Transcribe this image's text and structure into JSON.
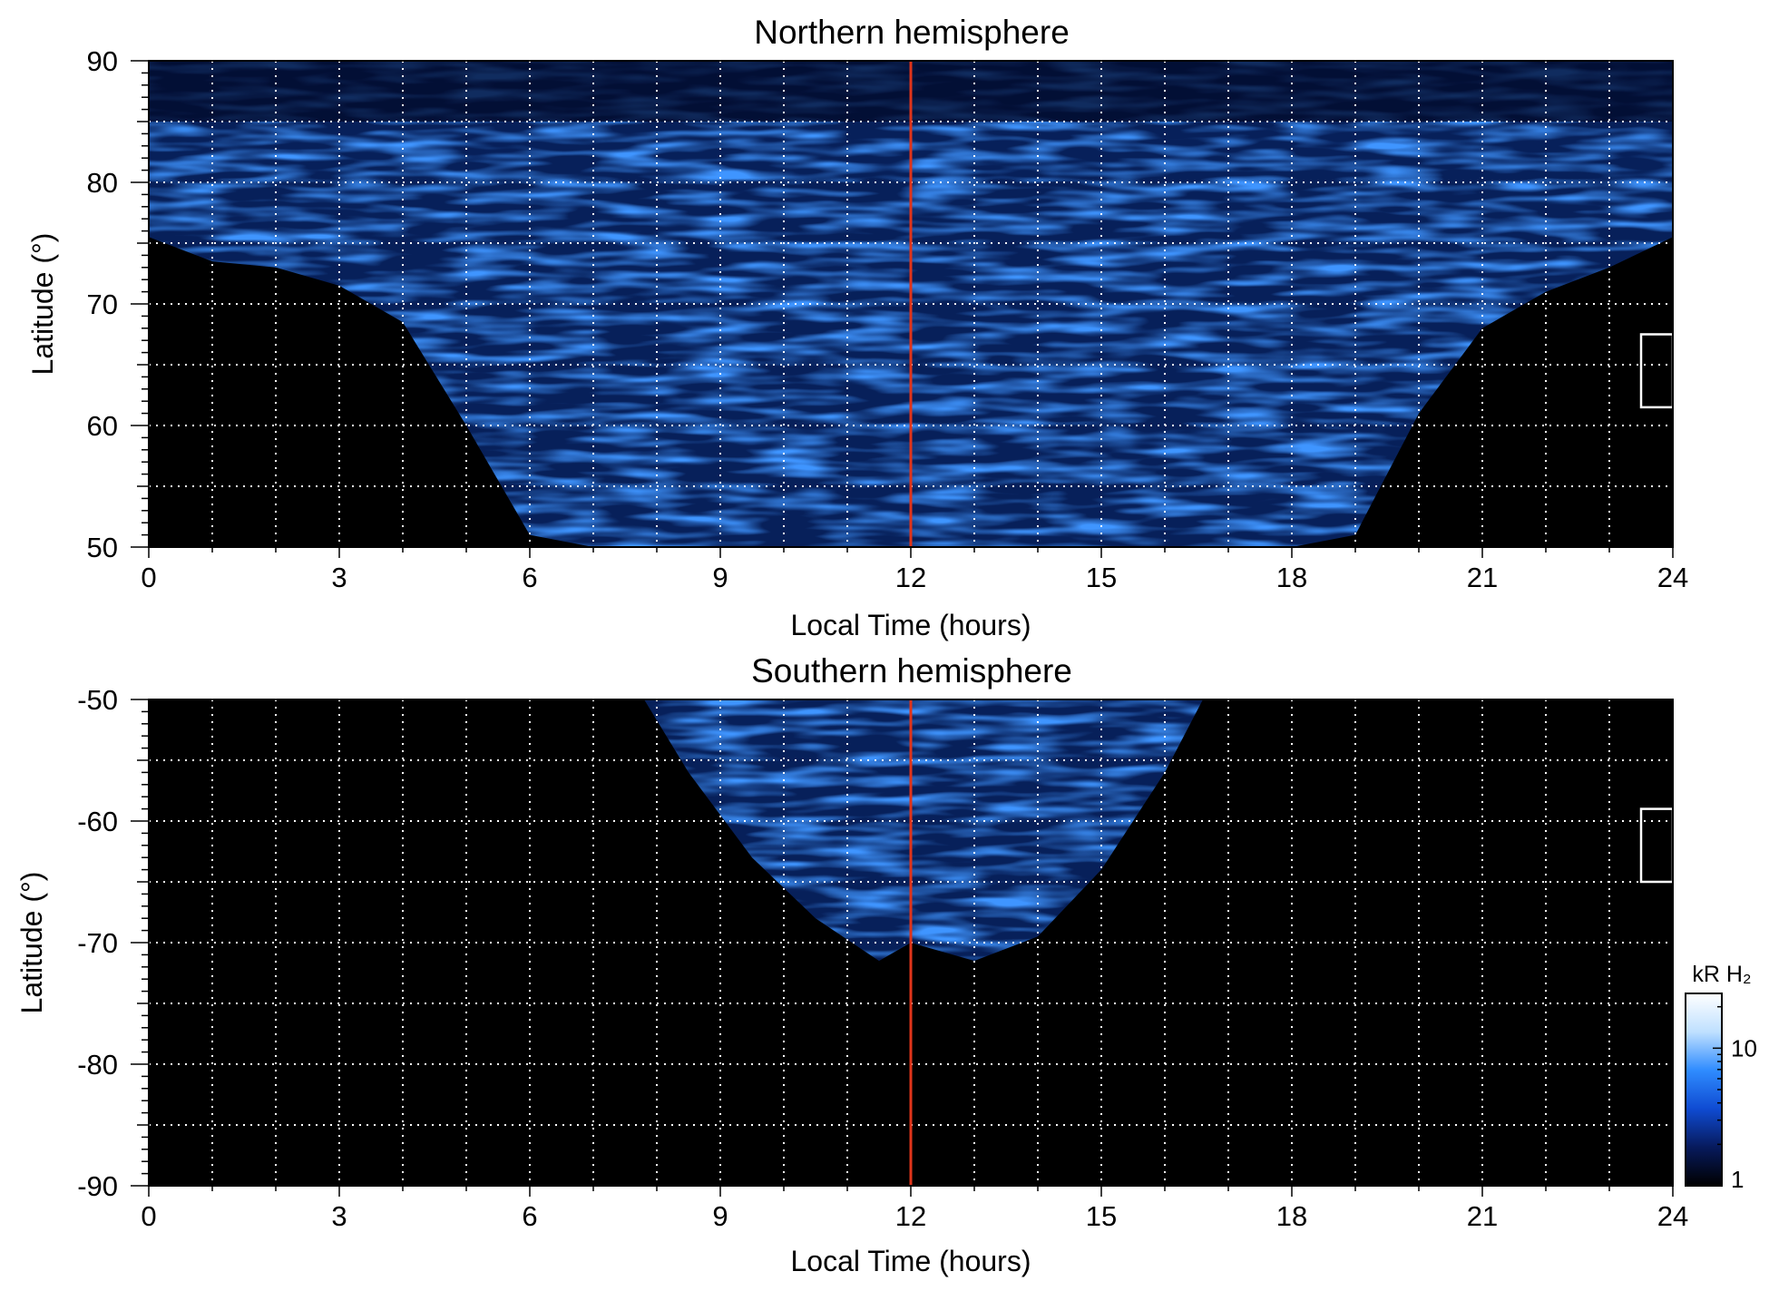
{
  "chart_data": [
    {
      "type": "heatmap",
      "title": "Northern hemisphere",
      "xlabel": "Local Time (hours)",
      "ylabel": "Latitude (°)",
      "xlim": [
        0,
        24
      ],
      "ylim": [
        50,
        90
      ],
      "xticks": [
        0,
        3,
        6,
        9,
        12,
        15,
        18,
        21,
        24
      ],
      "yticks": [
        50,
        60,
        70,
        80,
        90
      ],
      "xtick_labels": [
        "0",
        "3",
        "6",
        "9",
        "12",
        "15",
        "18",
        "21",
        "24"
      ],
      "ytick_labels": [
        "50",
        "60",
        "70",
        "80",
        "90"
      ],
      "x_gridlines": [
        1,
        2,
        3,
        4,
        5,
        6,
        7,
        8,
        9,
        10,
        11,
        12,
        13,
        14,
        15,
        16,
        17,
        18,
        19,
        20,
        21,
        22,
        23
      ],
      "y_gridlines": [
        55,
        60,
        65,
        70,
        75,
        80,
        85
      ],
      "grid": true,
      "reference_line": {
        "x": 12,
        "color": "#e0341a"
      },
      "coverage_edge": [
        [
          0,
          75.5
        ],
        [
          1,
          73.5
        ],
        [
          2,
          73
        ],
        [
          3,
          71.5
        ],
        [
          4,
          68.5
        ],
        [
          5,
          60
        ],
        [
          6,
          51
        ],
        [
          7,
          50
        ],
        [
          17,
          50
        ],
        [
          18,
          50
        ],
        [
          19,
          51
        ],
        [
          20,
          61
        ],
        [
          21,
          68
        ],
        [
          22,
          71
        ],
        [
          23,
          73
        ],
        [
          24,
          75.5
        ]
      ],
      "dark_band": [
        85,
        90
      ],
      "box": {
        "x": [
          23.5,
          24
        ],
        "y": [
          61.5,
          67.5
        ]
      }
    },
    {
      "type": "heatmap",
      "title": "Southern hemisphere",
      "xlabel": "Local Time (hours)",
      "ylabel": "Latitude (°)",
      "xlim": [
        0,
        24
      ],
      "ylim": [
        -90,
        -50
      ],
      "xticks": [
        0,
        3,
        6,
        9,
        12,
        15,
        18,
        21,
        24
      ],
      "yticks": [
        -90,
        -80,
        -70,
        -60,
        -50
      ],
      "xtick_labels": [
        "0",
        "3",
        "6",
        "9",
        "12",
        "15",
        "18",
        "21",
        "24"
      ],
      "ytick_labels": [
        "-90",
        "-80",
        "-70",
        "-60",
        "-50"
      ],
      "x_gridlines": [
        1,
        2,
        3,
        4,
        5,
        6,
        7,
        8,
        9,
        10,
        11,
        12,
        13,
        14,
        15,
        16,
        17,
        18,
        19,
        20,
        21,
        22,
        23
      ],
      "y_gridlines": [
        -85,
        -80,
        -75,
        -70,
        -65,
        -60,
        -55
      ],
      "grid": true,
      "reference_line": {
        "x": 12,
        "color": "#e0341a"
      },
      "coverage_edge": [
        [
          7.8,
          -50
        ],
        [
          8.5,
          -56
        ],
        [
          9.5,
          -63
        ],
        [
          10.5,
          -68
        ],
        [
          11.5,
          -71.5
        ],
        [
          12,
          -70
        ],
        [
          13,
          -71.5
        ],
        [
          14,
          -69.5
        ],
        [
          15,
          -64
        ],
        [
          16,
          -56
        ],
        [
          16.6,
          -50
        ]
      ],
      "box": {
        "x": [
          23.5,
          24
        ],
        "y": [
          -65,
          -59
        ]
      }
    }
  ],
  "colorbar": {
    "label": "kR H₂",
    "scale": "log",
    "range": [
      1,
      25
    ],
    "ticks": [
      1,
      10
    ],
    "tick_labels": [
      "1",
      "10"
    ],
    "colors": [
      "#000000",
      "#071a5c",
      "#0f4bd2",
      "#2f8cff",
      "#bfe0ff",
      "#ffffff"
    ]
  }
}
